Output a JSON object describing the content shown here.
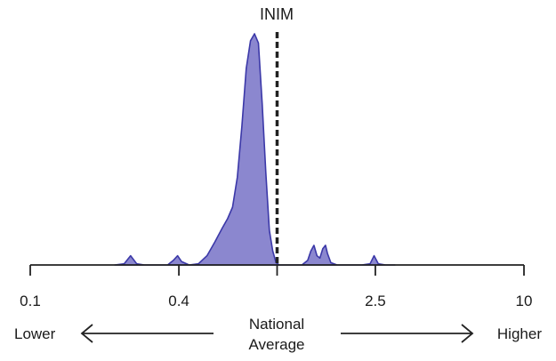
{
  "chart_data": {
    "type": "area",
    "title": "INIM",
    "x_scale": "log",
    "xlim": [
      0.1,
      10
    ],
    "x_ticks": [
      {
        "value": 0.1,
        "label": "0.1"
      },
      {
        "value": 0.4,
        "label": "0.4"
      },
      {
        "value": 1,
        "label": ""
      },
      {
        "value": 2.5,
        "label": "2.5"
      },
      {
        "value": 10,
        "label": "10"
      }
    ],
    "reference_line": {
      "value": 1,
      "style": "dashed"
    },
    "density": {
      "color": "#8b87cf",
      "stroke": "#3b38a8",
      "x": [
        0.22,
        0.24,
        0.255,
        0.27,
        0.29,
        0.32,
        0.36,
        0.38,
        0.395,
        0.41,
        0.44,
        0.48,
        0.52,
        0.56,
        0.6,
        0.63,
        0.66,
        0.69,
        0.72,
        0.75,
        0.78,
        0.81,
        0.84,
        0.87,
        0.9,
        0.93,
        0.96,
        0.99,
        1.02,
        1.05,
        1.08,
        1.12,
        1.18,
        1.26,
        1.33,
        1.37,
        1.41,
        1.45,
        1.49,
        1.53,
        1.57,
        1.6,
        1.65,
        1.75,
        1.95,
        2.2,
        2.38,
        2.47,
        2.57,
        2.75,
        3.0
      ],
      "y": [
        0,
        0.005,
        0.04,
        0.005,
        0,
        0,
        0,
        0.02,
        0.04,
        0.015,
        0,
        0.005,
        0.04,
        0.1,
        0.16,
        0.2,
        0.25,
        0.38,
        0.6,
        0.85,
        0.97,
        1.0,
        0.96,
        0.7,
        0.4,
        0.15,
        0.06,
        0.01,
        0,
        0,
        0,
        0,
        0,
        0,
        0.02,
        0.06,
        0.085,
        0.04,
        0.03,
        0.07,
        0.085,
        0.05,
        0.01,
        0,
        0,
        0,
        0.005,
        0.04,
        0.005,
        0,
        0
      ]
    },
    "annotations": {
      "left": "Lower",
      "center_line1": "National",
      "center_line2": "Average",
      "right": "Higher"
    }
  }
}
